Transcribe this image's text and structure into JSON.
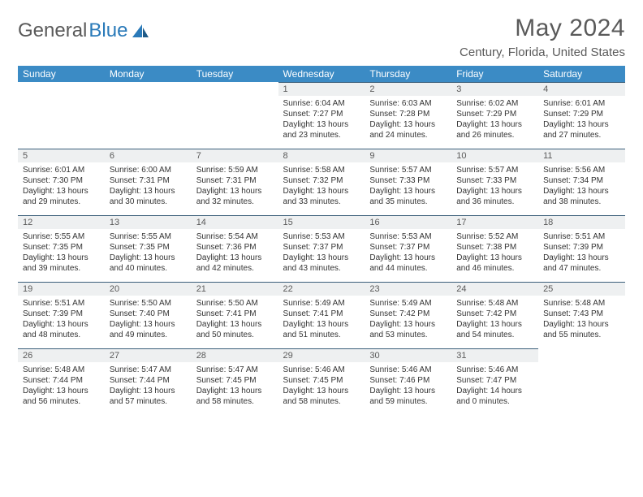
{
  "logo": {
    "part1": "General",
    "part2": "Blue"
  },
  "title": "May 2024",
  "location": "Century, Florida, United States",
  "colors": {
    "header_bg": "#3b8bc5",
    "header_text": "#ffffff",
    "daynum_bg": "#eef0f1",
    "daynum_border": "#3b5f7a",
    "body_text": "#333333",
    "title_text": "#5a5a5a",
    "logo_blue": "#2a7ab9"
  },
  "weekdays": [
    "Sunday",
    "Monday",
    "Tuesday",
    "Wednesday",
    "Thursday",
    "Friday",
    "Saturday"
  ],
  "weeks": [
    [
      null,
      null,
      null,
      {
        "n": "1",
        "sunrise": "6:04 AM",
        "sunset": "7:27 PM",
        "daylight": "13 hours and 23 minutes."
      },
      {
        "n": "2",
        "sunrise": "6:03 AM",
        "sunset": "7:28 PM",
        "daylight": "13 hours and 24 minutes."
      },
      {
        "n": "3",
        "sunrise": "6:02 AM",
        "sunset": "7:29 PM",
        "daylight": "13 hours and 26 minutes."
      },
      {
        "n": "4",
        "sunrise": "6:01 AM",
        "sunset": "7:29 PM",
        "daylight": "13 hours and 27 minutes."
      }
    ],
    [
      {
        "n": "5",
        "sunrise": "6:01 AM",
        "sunset": "7:30 PM",
        "daylight": "13 hours and 29 minutes."
      },
      {
        "n": "6",
        "sunrise": "6:00 AM",
        "sunset": "7:31 PM",
        "daylight": "13 hours and 30 minutes."
      },
      {
        "n": "7",
        "sunrise": "5:59 AM",
        "sunset": "7:31 PM",
        "daylight": "13 hours and 32 minutes."
      },
      {
        "n": "8",
        "sunrise": "5:58 AM",
        "sunset": "7:32 PM",
        "daylight": "13 hours and 33 minutes."
      },
      {
        "n": "9",
        "sunrise": "5:57 AM",
        "sunset": "7:33 PM",
        "daylight": "13 hours and 35 minutes."
      },
      {
        "n": "10",
        "sunrise": "5:57 AM",
        "sunset": "7:33 PM",
        "daylight": "13 hours and 36 minutes."
      },
      {
        "n": "11",
        "sunrise": "5:56 AM",
        "sunset": "7:34 PM",
        "daylight": "13 hours and 38 minutes."
      }
    ],
    [
      {
        "n": "12",
        "sunrise": "5:55 AM",
        "sunset": "7:35 PM",
        "daylight": "13 hours and 39 minutes."
      },
      {
        "n": "13",
        "sunrise": "5:55 AM",
        "sunset": "7:35 PM",
        "daylight": "13 hours and 40 minutes."
      },
      {
        "n": "14",
        "sunrise": "5:54 AM",
        "sunset": "7:36 PM",
        "daylight": "13 hours and 42 minutes."
      },
      {
        "n": "15",
        "sunrise": "5:53 AM",
        "sunset": "7:37 PM",
        "daylight": "13 hours and 43 minutes."
      },
      {
        "n": "16",
        "sunrise": "5:53 AM",
        "sunset": "7:37 PM",
        "daylight": "13 hours and 44 minutes."
      },
      {
        "n": "17",
        "sunrise": "5:52 AM",
        "sunset": "7:38 PM",
        "daylight": "13 hours and 46 minutes."
      },
      {
        "n": "18",
        "sunrise": "5:51 AM",
        "sunset": "7:39 PM",
        "daylight": "13 hours and 47 minutes."
      }
    ],
    [
      {
        "n": "19",
        "sunrise": "5:51 AM",
        "sunset": "7:39 PM",
        "daylight": "13 hours and 48 minutes."
      },
      {
        "n": "20",
        "sunrise": "5:50 AM",
        "sunset": "7:40 PM",
        "daylight": "13 hours and 49 minutes."
      },
      {
        "n": "21",
        "sunrise": "5:50 AM",
        "sunset": "7:41 PM",
        "daylight": "13 hours and 50 minutes."
      },
      {
        "n": "22",
        "sunrise": "5:49 AM",
        "sunset": "7:41 PM",
        "daylight": "13 hours and 51 minutes."
      },
      {
        "n": "23",
        "sunrise": "5:49 AM",
        "sunset": "7:42 PM",
        "daylight": "13 hours and 53 minutes."
      },
      {
        "n": "24",
        "sunrise": "5:48 AM",
        "sunset": "7:42 PM",
        "daylight": "13 hours and 54 minutes."
      },
      {
        "n": "25",
        "sunrise": "5:48 AM",
        "sunset": "7:43 PM",
        "daylight": "13 hours and 55 minutes."
      }
    ],
    [
      {
        "n": "26",
        "sunrise": "5:48 AM",
        "sunset": "7:44 PM",
        "daylight": "13 hours and 56 minutes."
      },
      {
        "n": "27",
        "sunrise": "5:47 AM",
        "sunset": "7:44 PM",
        "daylight": "13 hours and 57 minutes."
      },
      {
        "n": "28",
        "sunrise": "5:47 AM",
        "sunset": "7:45 PM",
        "daylight": "13 hours and 58 minutes."
      },
      {
        "n": "29",
        "sunrise": "5:46 AM",
        "sunset": "7:45 PM",
        "daylight": "13 hours and 58 minutes."
      },
      {
        "n": "30",
        "sunrise": "5:46 AM",
        "sunset": "7:46 PM",
        "daylight": "13 hours and 59 minutes."
      },
      {
        "n": "31",
        "sunrise": "5:46 AM",
        "sunset": "7:47 PM",
        "daylight": "14 hours and 0 minutes."
      },
      null
    ]
  ],
  "labels": {
    "sunrise": "Sunrise: ",
    "sunset": "Sunset: ",
    "daylight": "Daylight: "
  }
}
